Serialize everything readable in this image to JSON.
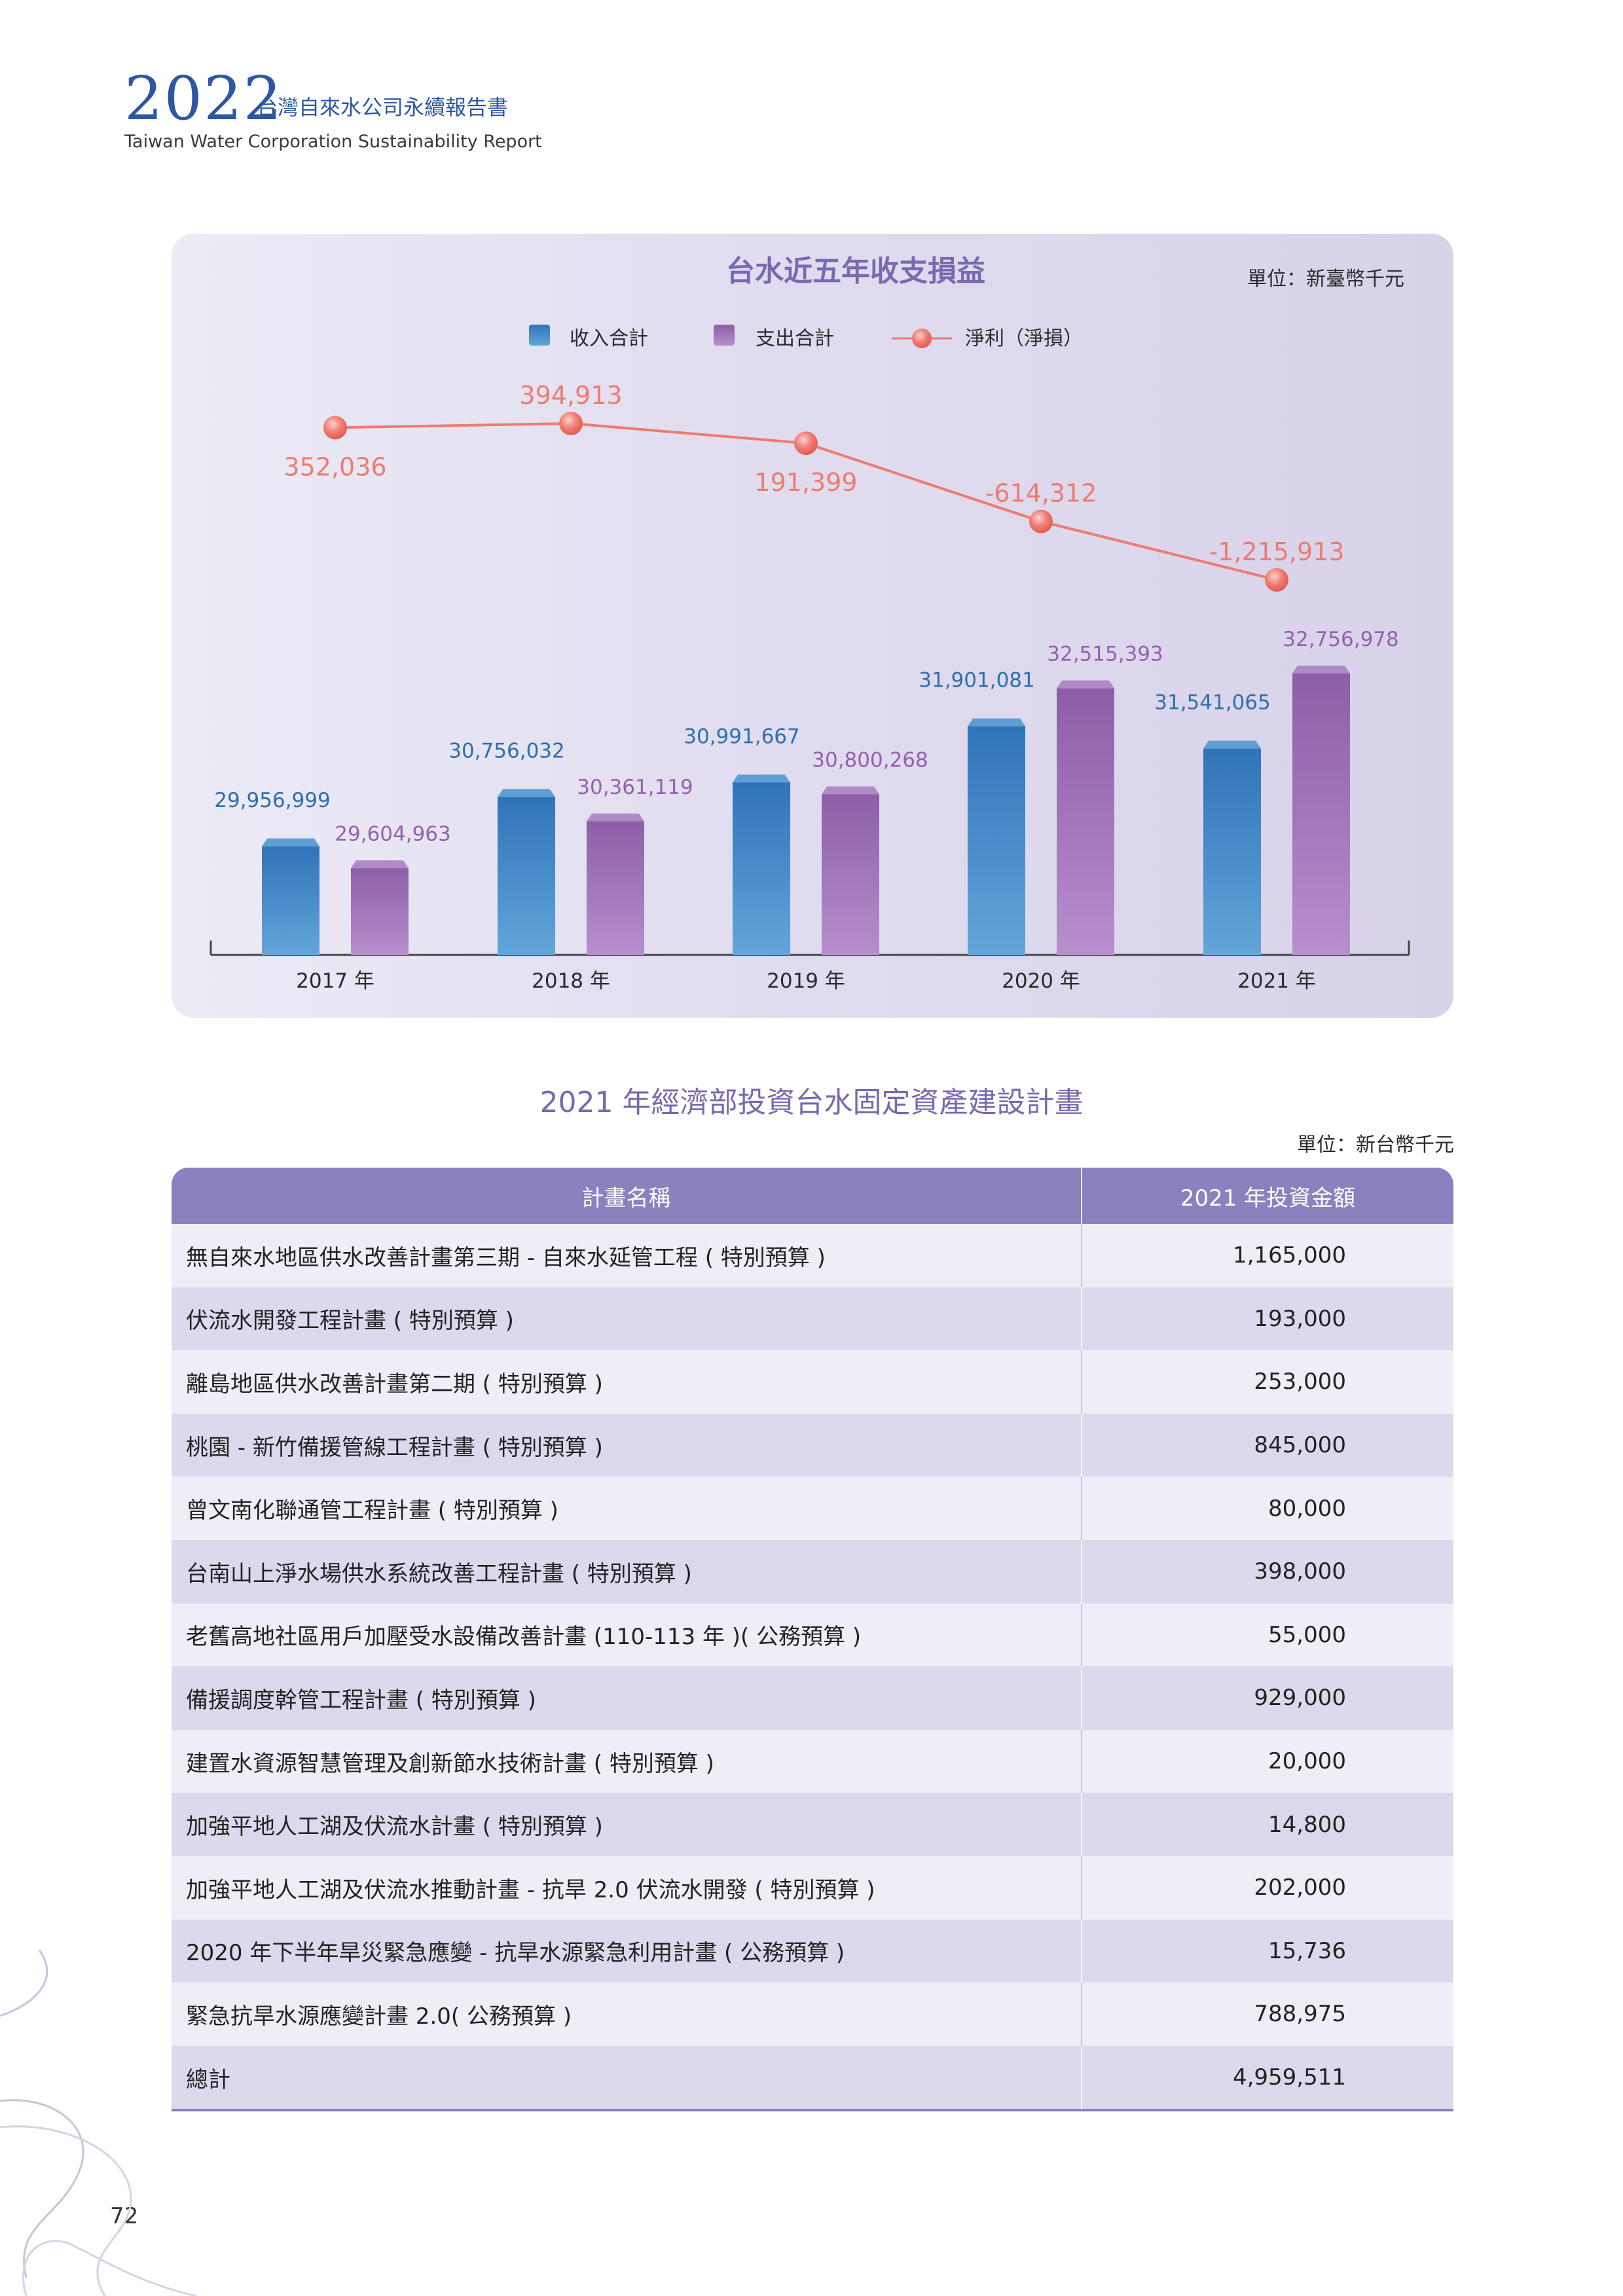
{
  "header": {
    "year": "2022",
    "title_zh": "台灣自來水公司永續報告書",
    "title_en": "Taiwan Water Corporation Sustainability Report"
  },
  "chart_data": {
    "type": "bar",
    "title": "台水近五年收支損益",
    "unit": "單位：新臺幣千元",
    "categories": [
      "2017 年",
      "2018 年",
      "2019 年",
      "2020 年",
      "2021 年"
    ],
    "series": [
      {
        "name": "收入合計",
        "type": "bar",
        "color": "#3d86c6",
        "values": [
          29956999,
          30756032,
          30991667,
          31901081,
          31541065
        ],
        "labels": [
          "29,956,999",
          "30,756,032",
          "30,991,667",
          "31,901,081",
          "31,541,065"
        ]
      },
      {
        "name": "支出合計",
        "type": "bar",
        "color": "#9b72b6",
        "values": [
          29604963,
          30361119,
          30800268,
          32515393,
          32756978
        ],
        "labels": [
          "29,604,963",
          "30,361,119",
          "30,800,268",
          "32,515,393",
          "32,756,978"
        ]
      },
      {
        "name": "淨利（淨損）",
        "type": "line",
        "color": "#ee7b72",
        "values": [
          352036,
          394913,
          191399,
          -614312,
          -1215913
        ],
        "labels": [
          "352,036",
          "394,913",
          "191,399",
          "-614,312",
          "-1,215,913"
        ]
      }
    ],
    "legend_position": "top-center",
    "grid": false
  },
  "table": {
    "title": "2021 年經濟部投資台水固定資產建設計畫",
    "unit": "單位：新台幣千元",
    "headers": [
      "計畫名稱",
      "2021 年投資金額"
    ],
    "rows": [
      {
        "name": "無自來水地區供水改善計畫第三期 - 自來水延管工程 ( 特別預算 )",
        "amount": "1,165,000"
      },
      {
        "name": "伏流水開發工程計畫 ( 特別預算 )",
        "amount": "193,000"
      },
      {
        "name": "離島地區供水改善計畫第二期 ( 特別預算 )",
        "amount": "253,000"
      },
      {
        "name": "桃園 - 新竹備援管線工程計畫 ( 特別預算 )",
        "amount": "845,000"
      },
      {
        "name": "曾文南化聯通管工程計畫 ( 特別預算 )",
        "amount": "80,000"
      },
      {
        "name": "台南山上淨水場供水系統改善工程計畫 ( 特別預算 )",
        "amount": "398,000"
      },
      {
        "name": "老舊高地社區用戶加壓受水設備改善計畫 (110-113 年 )( 公務預算 )",
        "amount": "55,000"
      },
      {
        "name": "備援調度幹管工程計畫 ( 特別預算 )",
        "amount": "929,000"
      },
      {
        "name": "建置水資源智慧管理及創新節水技術計畫 ( 特別預算 )",
        "amount": "20,000"
      },
      {
        "name": "加強平地人工湖及伏流水計畫 ( 特別預算 )",
        "amount": "14,800"
      },
      {
        "name": "加強平地人工湖及伏流水推動計畫 - 抗旱 2.0 伏流水開發 ( 特別預算 )",
        "amount": "202,000"
      },
      {
        "name": "2020 年下半年旱災緊急應變 - 抗旱水源緊急利用計畫 ( 公務預算 )",
        "amount": "15,736"
      },
      {
        "name": "緊急抗旱水源應變計畫 2.0( 公務預算 )",
        "amount": "788,975"
      },
      {
        "name": "總計",
        "amount": "4,959,511"
      }
    ]
  },
  "footer": {
    "page_number": "72"
  }
}
